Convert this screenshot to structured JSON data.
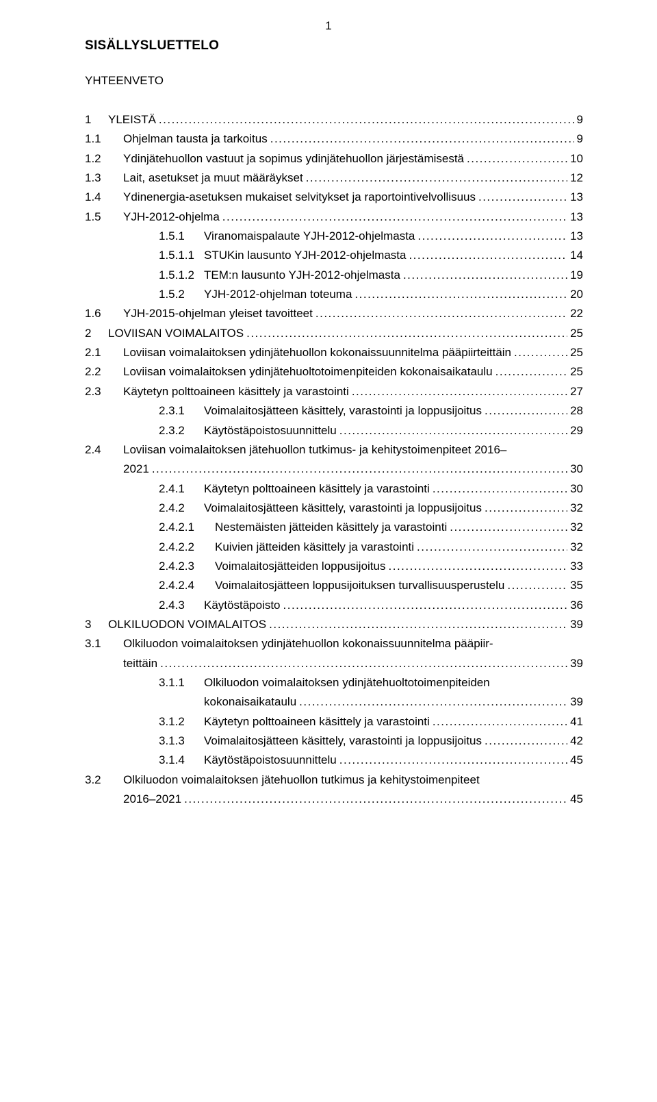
{
  "page_number": "1",
  "toc_heading": "SISÄLLYSLUETTELO",
  "summary_heading": "YHTEENVETO",
  "entries": [
    {
      "lvl": 0,
      "num": "1",
      "title": "YLEISTÄ",
      "pg": "9"
    },
    {
      "lvl": 1,
      "num": "1.1",
      "title": "Ohjelman tausta ja tarkoitus",
      "pg": "9"
    },
    {
      "lvl": 1,
      "num": "1.2",
      "title": "Ydinjätehuollon vastuut ja sopimus ydinjätehuollon järjestämisestä",
      "pg": "10"
    },
    {
      "lvl": 1,
      "num": "1.3",
      "title": "Lait, asetukset ja muut määräykset",
      "pg": "12"
    },
    {
      "lvl": 1,
      "num": "1.4",
      "title": "Ydinenergia-asetuksen mukaiset selvitykset ja raportointivelvollisuus",
      "pg": "13"
    },
    {
      "lvl": 1,
      "num": "1.5",
      "title": "YJH-2012-ohjelma",
      "pg": "13"
    },
    {
      "lvl": 2,
      "num": "1.5.1",
      "title": "Viranomaispalaute YJH-2012-ohjelmasta",
      "pg": "13"
    },
    {
      "lvl": 2,
      "num": "1.5.1.1",
      "title": "STUKin lausunto YJH-2012-ohjelmasta",
      "pg": "14"
    },
    {
      "lvl": 2,
      "num": "1.5.1.2",
      "title": "TEM:n lausunto YJH-2012-ohjelmasta",
      "pg": "19"
    },
    {
      "lvl": 2,
      "num": "1.5.2",
      "title": "YJH-2012-ohjelman toteuma",
      "pg": "20"
    },
    {
      "lvl": 1,
      "num": "1.6",
      "title": "YJH-2015-ohjelman yleiset tavoitteet",
      "pg": "22"
    },
    {
      "lvl": 0,
      "num": "2",
      "title": "LOVIISAN VOIMALAITOS",
      "pg": "25"
    },
    {
      "lvl": 1,
      "num": "2.1",
      "title": "Loviisan voimalaitoksen ydinjätehuollon kokonaissuunnitelma pääpiirteittäin",
      "pg": "25"
    },
    {
      "lvl": 1,
      "num": "2.2",
      "title": "Loviisan voimalaitoksen ydinjätehuoltotoimenpiteiden kokonaisaikataulu",
      "pg": "25"
    },
    {
      "lvl": 1,
      "num": "2.3",
      "title": "Käytetyn polttoaineen käsittely ja varastointi",
      "pg": "27"
    },
    {
      "lvl": 2,
      "num": "2.3.1",
      "title": "Voimalaitosjätteen käsittely, varastointi ja loppusijoitus",
      "pg": "28"
    },
    {
      "lvl": 2,
      "num": "2.3.2",
      "title": "Käytöstäpoistosuunnittelu",
      "pg": "29"
    },
    {
      "lvl": 1,
      "num": "2.4",
      "title_lines": [
        "Loviisan voimalaitoksen jätehuollon tutkimus- ja kehitystoimenpiteet 2016–",
        "2021"
      ],
      "pg": "30"
    },
    {
      "lvl": 2,
      "num": "2.4.1",
      "title": "Käytetyn polttoaineen käsittely ja varastointi",
      "pg": "30"
    },
    {
      "lvl": 2,
      "num": "2.4.2",
      "title": "Voimalaitosjätteen käsittely, varastointi ja loppusijoitus",
      "pg": "32"
    },
    {
      "lvl": 3,
      "num": "2.4.2.1",
      "title": "Nestemäisten jätteiden käsittely ja varastointi",
      "pg": "32"
    },
    {
      "lvl": 3,
      "num": "2.4.2.2",
      "title": "Kuivien jätteiden käsittely ja varastointi",
      "pg": "32"
    },
    {
      "lvl": 3,
      "num": "2.4.2.3",
      "title": "Voimalaitosjätteiden loppusijoitus",
      "pg": "33"
    },
    {
      "lvl": 3,
      "num": "2.4.2.4",
      "title": "Voimalaitosjätteen loppusijoituksen turvallisuusperustelu",
      "pg": "35"
    },
    {
      "lvl": 2,
      "num": "2.4.3",
      "title": "Käytöstäpoisto",
      "pg": "36"
    },
    {
      "lvl": 0,
      "num": "3",
      "title": "OLKILUODON VOIMALAITOS",
      "pg": "39"
    },
    {
      "lvl": 1,
      "num": "3.1",
      "title_lines": [
        "Olkiluodon  voimalaitoksen  ydinjätehuollon  kokonaissuunnitelma  pääpiir-",
        "teittäin"
      ],
      "pg": "39"
    },
    {
      "lvl": 2,
      "num": "3.1.1",
      "title_lines": [
        "Olkiluodon voimalaitoksen ydinjätehuoltotoimenpiteiden",
        "kokonaisaikataulu"
      ],
      "pg": "39"
    },
    {
      "lvl": 2,
      "num": "3.1.2",
      "title": "Käytetyn polttoaineen käsittely ja varastointi",
      "pg": "41"
    },
    {
      "lvl": 2,
      "num": "3.1.3",
      "title": "Voimalaitosjätteen käsittely, varastointi ja loppusijoitus",
      "pg": "42"
    },
    {
      "lvl": 2,
      "num": "3.1.4",
      "title": "Käytöstäpoistosuunnittelu",
      "pg": "45"
    },
    {
      "lvl": 1,
      "num": "3.2",
      "title_lines": [
        "Olkiluodon  voimalaitoksen  jätehuollon  tutkimus  ja  kehitystoimenpiteet",
        "2016–2021"
      ],
      "pg": "45"
    }
  ]
}
